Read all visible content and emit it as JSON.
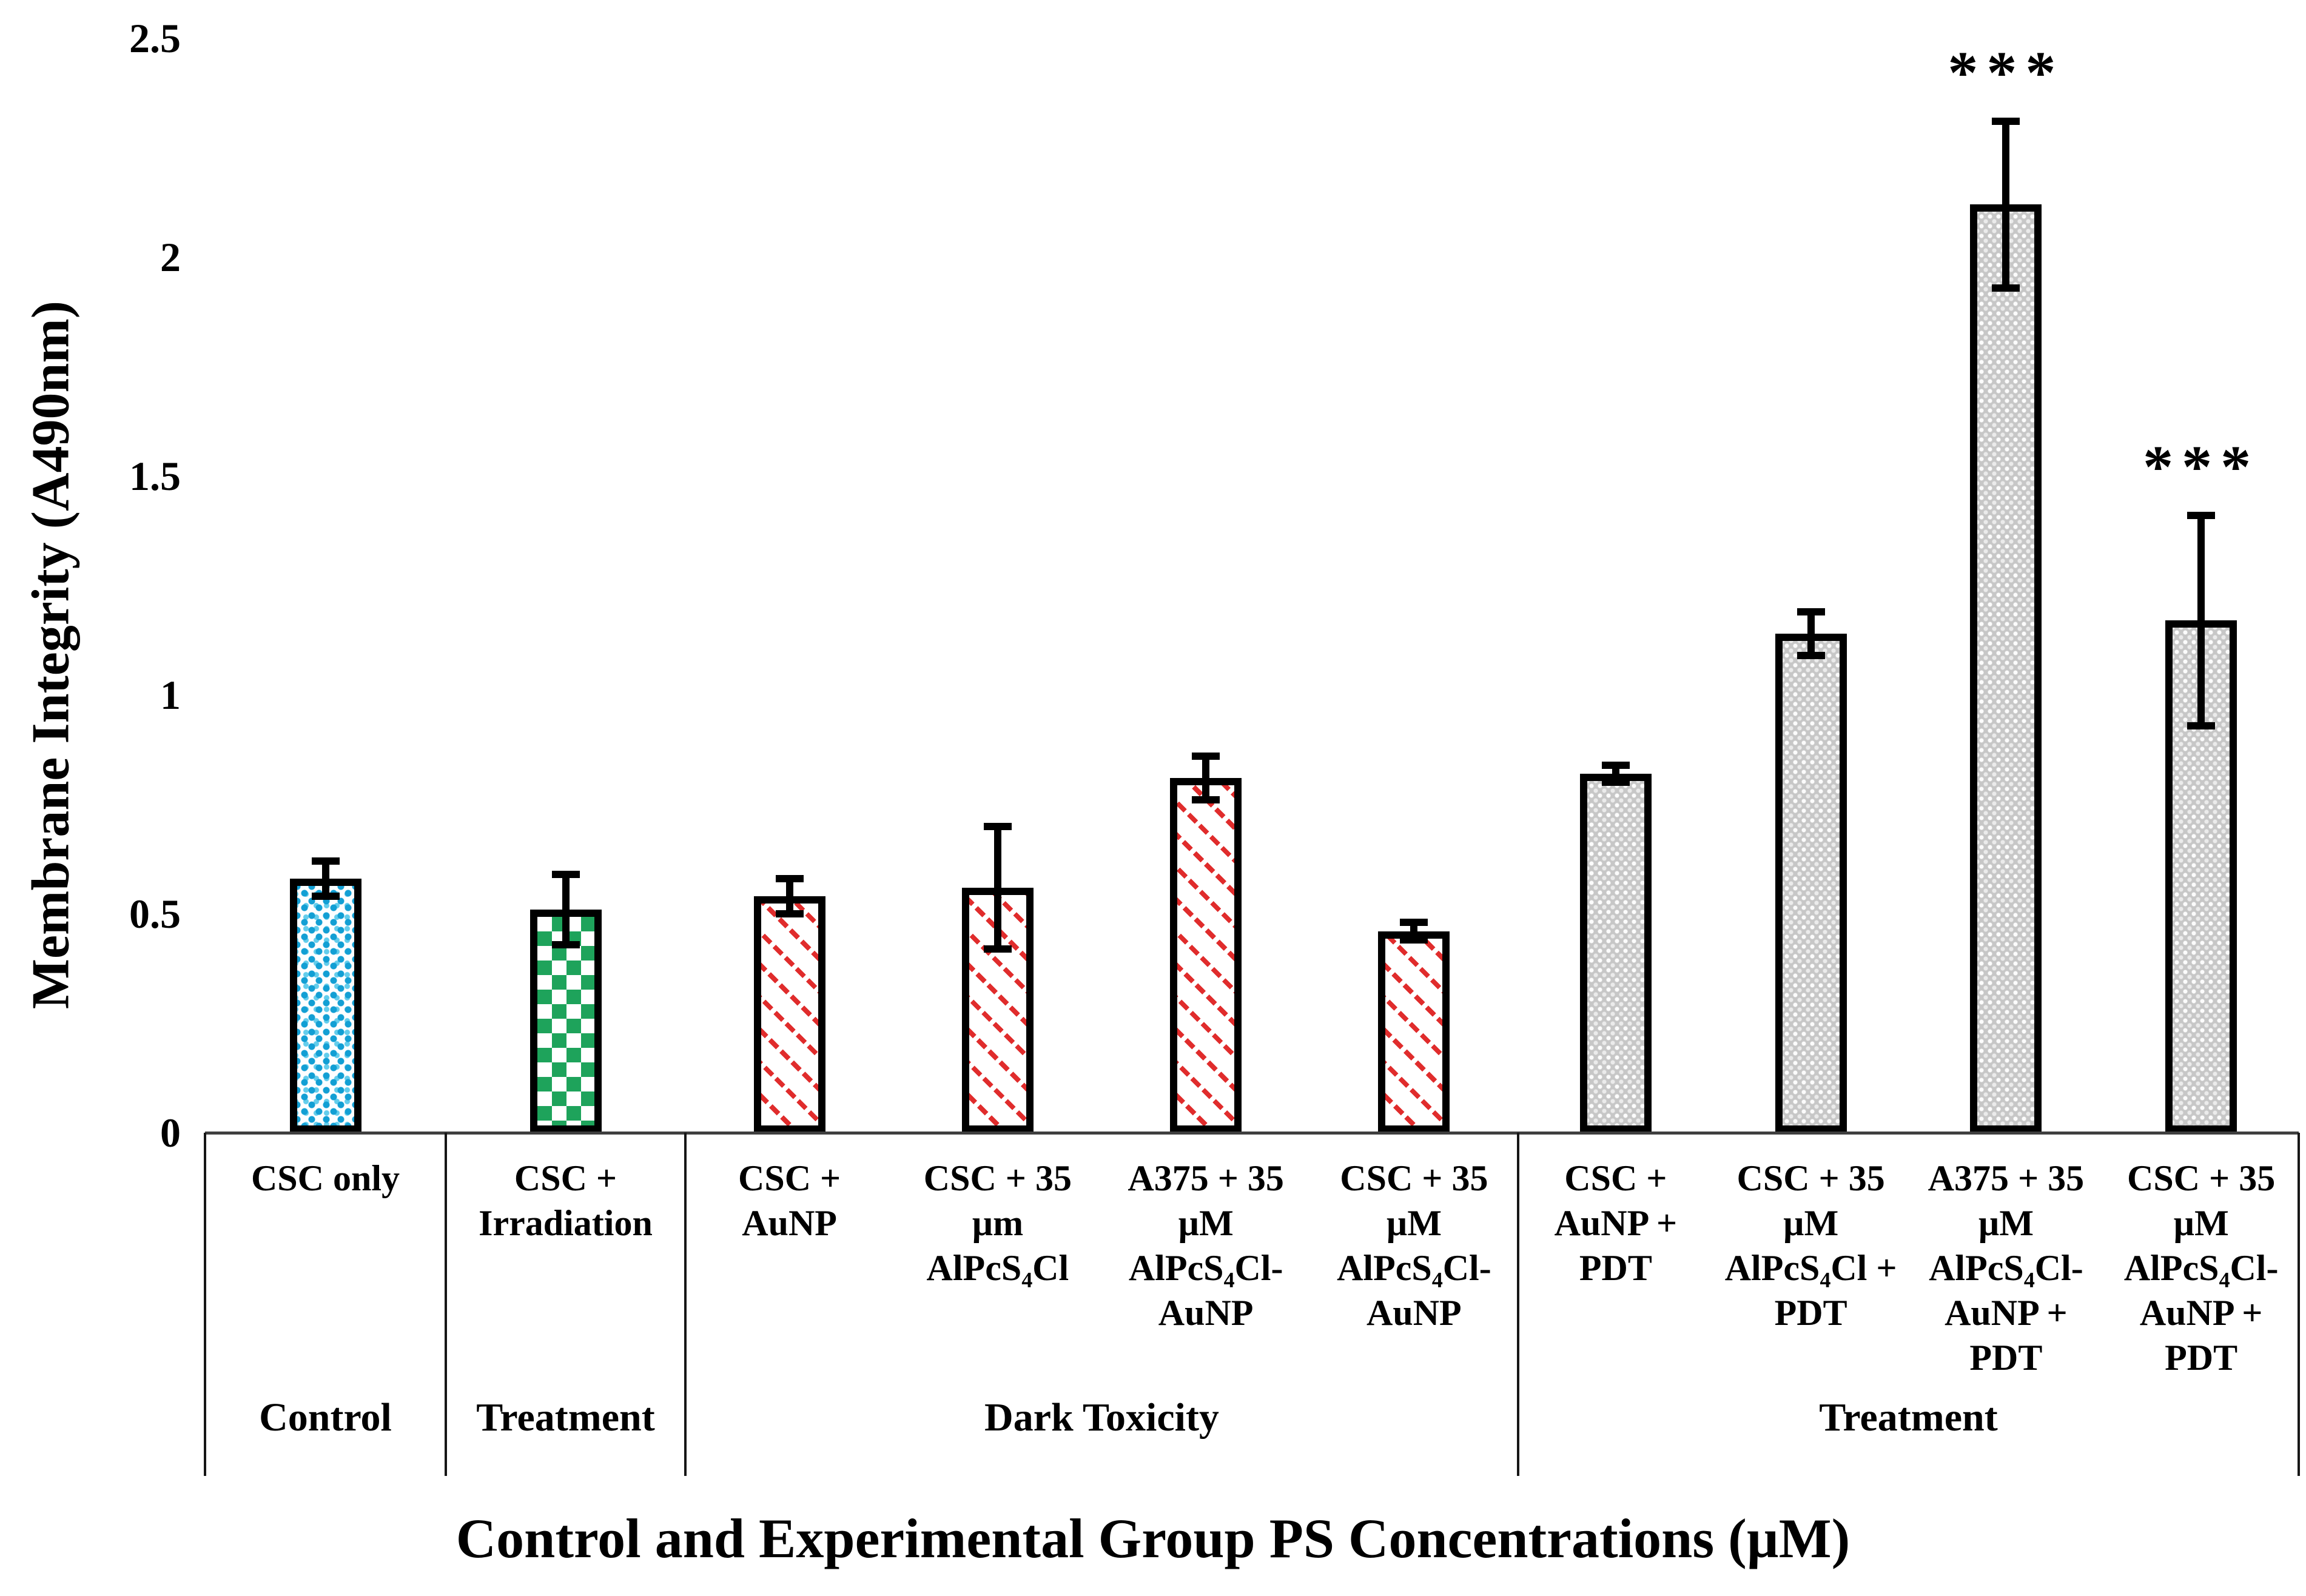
{
  "figure": {
    "background": "#ffffff"
  },
  "colors": {
    "blue_dot_fill": "#129fd4",
    "green_checker_fill": "#1ea35b",
    "red_hatch_fill": "#e02c2c",
    "gray_weave_fill": "#c7c7c7",
    "bar_border": "#000000"
  },
  "chart_data": {
    "type": "bar",
    "title": "",
    "xlabel": "Control and Experimental Group PS Concentrations (µM)",
    "ylabel": "Membrane Integrity (A490nm)",
    "ylim": [
      0,
      2.5
    ],
    "yticks": [
      2.5,
      2,
      1.5,
      1,
      0.5,
      0
    ],
    "ytick_labels": [
      "2.5",
      "2",
      "1.5",
      "1",
      "0.5",
      "0"
    ],
    "grid": false,
    "legend": "none",
    "error_bars": true,
    "groups": [
      {
        "label": "Control",
        "bars": [
          {
            "category": "CSC only",
            "value": 0.58,
            "error": 0.04,
            "pattern": "blue-dots",
            "annotation": ""
          }
        ]
      },
      {
        "label": "Treatment",
        "bars": [
          {
            "category": "CSC +\nIrradiation",
            "value": 0.51,
            "error": 0.08,
            "pattern": "green-checker",
            "annotation": ""
          }
        ]
      },
      {
        "label": "Dark Toxicity",
        "bars": [
          {
            "category": "CSC +\nAuNP",
            "value": 0.54,
            "error": 0.04,
            "pattern": "red-hatch",
            "annotation": ""
          },
          {
            "category": "CSC + 35\nµm\nAlPcS₄Cl",
            "value": 0.56,
            "error": 0.14,
            "pattern": "red-hatch",
            "annotation": ""
          },
          {
            "category": "A375 + 35\nµM\nAlPcS₄Cl-\nAuNP",
            "value": 0.81,
            "error": 0.05,
            "pattern": "red-hatch",
            "annotation": ""
          },
          {
            "category": "CSC + 35\nµM\nAlPcS₄Cl-\nAuNP",
            "value": 0.46,
            "error": 0.02,
            "pattern": "red-hatch",
            "annotation": ""
          }
        ]
      },
      {
        "label": "Treatment",
        "bars": [
          {
            "category": "CSC +\nAuNP +\nPDT",
            "value": 0.82,
            "error": 0.02,
            "pattern": "gray-weave",
            "annotation": ""
          },
          {
            "category": "CSC + 35\nµM\nAlPcS₄Cl +\nPDT",
            "value": 1.14,
            "error": 0.05,
            "pattern": "gray-weave",
            "annotation": ""
          },
          {
            "category": "A375 + 35\nµM\nAlPcS₄Cl-\nAuNP +\nPDT",
            "value": 2.12,
            "error": 0.19,
            "pattern": "gray-weave",
            "annotation": "***"
          },
          {
            "category": "CSC + 35\nµM\nAlPcS₄Cl-\nAuNP +\nPDT",
            "value": 1.17,
            "error": 0.24,
            "pattern": "gray-weave",
            "annotation": "***"
          }
        ]
      }
    ]
  }
}
